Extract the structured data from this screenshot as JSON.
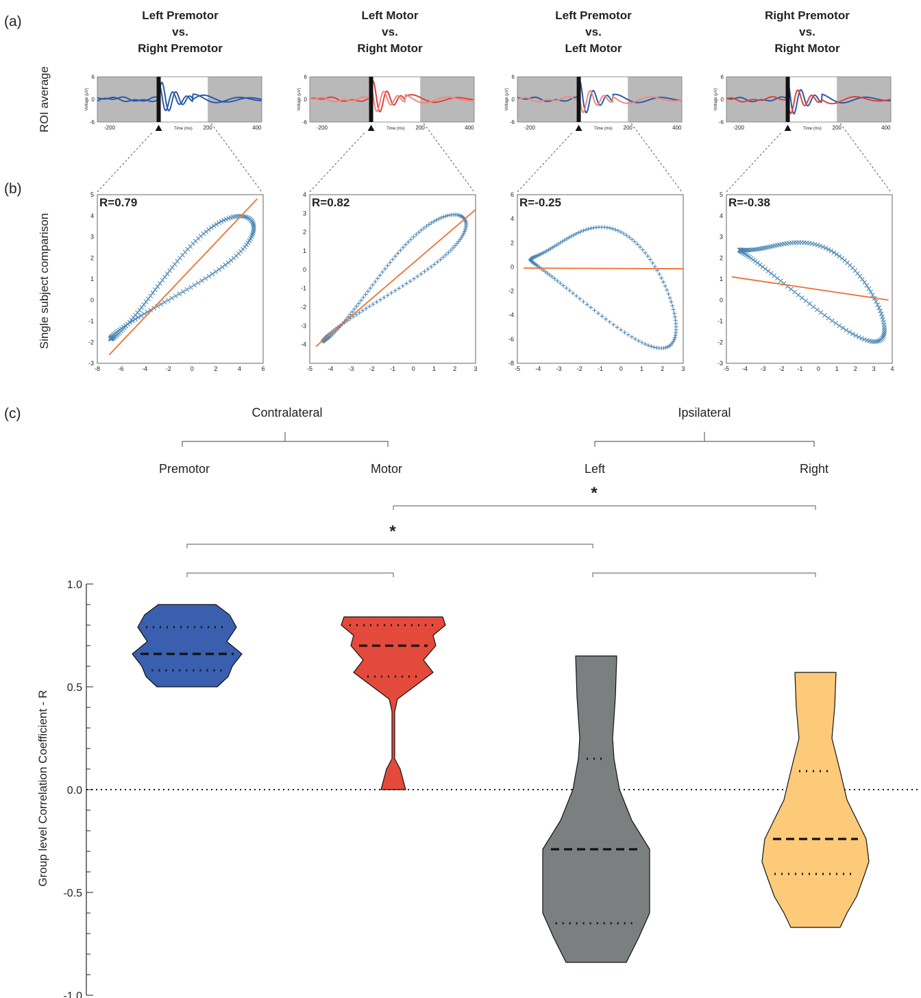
{
  "panel_labels": [
    "(a)",
    "(b)",
    "(c)"
  ],
  "row_labels": {
    "a": "ROI average",
    "b": "Single subject comparison"
  },
  "comparisons": [
    {
      "title": [
        "Left Premotor",
        "vs.",
        "Right Premotor"
      ],
      "r_label": "R=0.79",
      "r": 0.79,
      "colors": [
        "#2a5aa8",
        "#2a5aa8"
      ],
      "scatter_x_ticks": [
        "-8",
        "-6",
        "-4",
        "-2",
        "0",
        "2",
        "4",
        "6"
      ],
      "scatter_y_ticks": [
        "-3",
        "-2",
        "-1",
        "0",
        "1",
        "2",
        "3",
        "4",
        "5"
      ],
      "scatter_xlim": [
        -8,
        6
      ],
      "scatter_ylim": [
        -3,
        5
      ],
      "marker": "x",
      "fit": [
        [
          -7,
          -2.6
        ],
        [
          5.5,
          4.8
        ]
      ]
    },
    {
      "title": [
        "Left Motor",
        "vs.",
        "Right Motor"
      ],
      "r_label": "R=0.82",
      "r": 0.82,
      "colors": [
        "#e0403a",
        "#f08880"
      ],
      "scatter_x_ticks": [
        "-5",
        "-4",
        "-3",
        "-2",
        "-1",
        "0",
        "1",
        "2",
        "3"
      ],
      "scatter_y_ticks": [
        "-4",
        "-3",
        "-2",
        "-1",
        "0",
        "1",
        "2",
        "3",
        "4"
      ],
      "scatter_xlim": [
        -5,
        3
      ],
      "scatter_ylim": [
        -5,
        4
      ],
      "marker": "+",
      "fit": [
        [
          -4.7,
          -4.1
        ],
        [
          3,
          3.2
        ]
      ]
    },
    {
      "title": [
        "Left Premotor",
        "vs.",
        "Left Motor"
      ],
      "r_label": "R=-0.25",
      "r": -0.25,
      "colors": [
        "#2a5aa8",
        "#f08880"
      ],
      "scatter_x_ticks": [
        "-5",
        "-4",
        "-3",
        "-2",
        "-1",
        "0",
        "1",
        "2",
        "3"
      ],
      "scatter_y_ticks": [
        "-8",
        "-6",
        "-4",
        "-2",
        "0",
        "2",
        "4",
        "6"
      ],
      "scatter_xlim": [
        -5,
        3
      ],
      "scatter_ylim": [
        -8,
        6
      ],
      "marker": "+",
      "fit": [
        [
          -4.7,
          -0.1
        ],
        [
          3,
          -0.15
        ]
      ]
    },
    {
      "title": [
        "Right Premotor",
        "vs.",
        "Right Motor"
      ],
      "r_label": "R=-0.38",
      "r": -0.38,
      "colors": [
        "#2a5aa8",
        "#e0403a"
      ],
      "scatter_x_ticks": [
        "-5",
        "-4",
        "-3",
        "-2",
        "-1",
        "0",
        "1",
        "2",
        "3",
        "4"
      ],
      "scatter_y_ticks": [
        "-3",
        "-2",
        "-1",
        "0",
        "1",
        "2",
        "3",
        "4",
        "5"
      ],
      "scatter_xlim": [
        -5,
        4
      ],
      "scatter_ylim": [
        -3,
        5
      ],
      "marker": "x",
      "fit": [
        [
          -4.7,
          1.1
        ],
        [
          3.8,
          0
        ]
      ]
    }
  ],
  "erp_axes": {
    "ylabel": "Voltage (μV)",
    "xlabel": "Time (ms)",
    "y_ticks": [
      "6",
      "0",
      "-6"
    ],
    "x_ticks": [
      "-200",
      "0",
      "200",
      "400"
    ],
    "xlim": [
      -250,
      420
    ],
    "ylim": [
      -6,
      6
    ],
    "window": [
      0,
      200
    ]
  },
  "chart_data": {
    "type": "violin",
    "ylabel": "Group level Correlation Coefficient - R",
    "ylim": [
      -1.0,
      1.0
    ],
    "y_ticks": [
      "1.0",
      "0.5",
      "0.0",
      "-0.5",
      "-1.0"
    ],
    "groups": [
      {
        "name": "Contralateral",
        "categories": [
          "Premotor",
          "Motor"
        ]
      },
      {
        "name": "Ipsilateral",
        "categories": [
          "Left",
          "Right"
        ]
      }
    ],
    "violins": [
      {
        "category": "Premotor",
        "color": "#3a5fae",
        "min": 0.5,
        "max": 0.9,
        "median": 0.66,
        "q1": 0.58,
        "q3": 0.79
      },
      {
        "category": "Motor",
        "color": "#e34a3b",
        "min": 0.0,
        "max": 0.84,
        "median": 0.7,
        "q1": 0.55,
        "q3": 0.8
      },
      {
        "category": "Left",
        "color": "#7b7f80",
        "min": -0.84,
        "max": 0.65,
        "median": -0.29,
        "q1": -0.65,
        "q3": 0.15
      },
      {
        "category": "Right",
        "color": "#fdca7a",
        "min": -0.67,
        "max": 0.57,
        "median": -0.24,
        "q1": -0.41,
        "q3": 0.09
      }
    ],
    "significance": [
      {
        "label": "*",
        "from": "Motor",
        "to": "Right"
      },
      {
        "label": "*",
        "from": "Premotor",
        "to": "Left"
      }
    ],
    "reference_line": 0.0
  }
}
